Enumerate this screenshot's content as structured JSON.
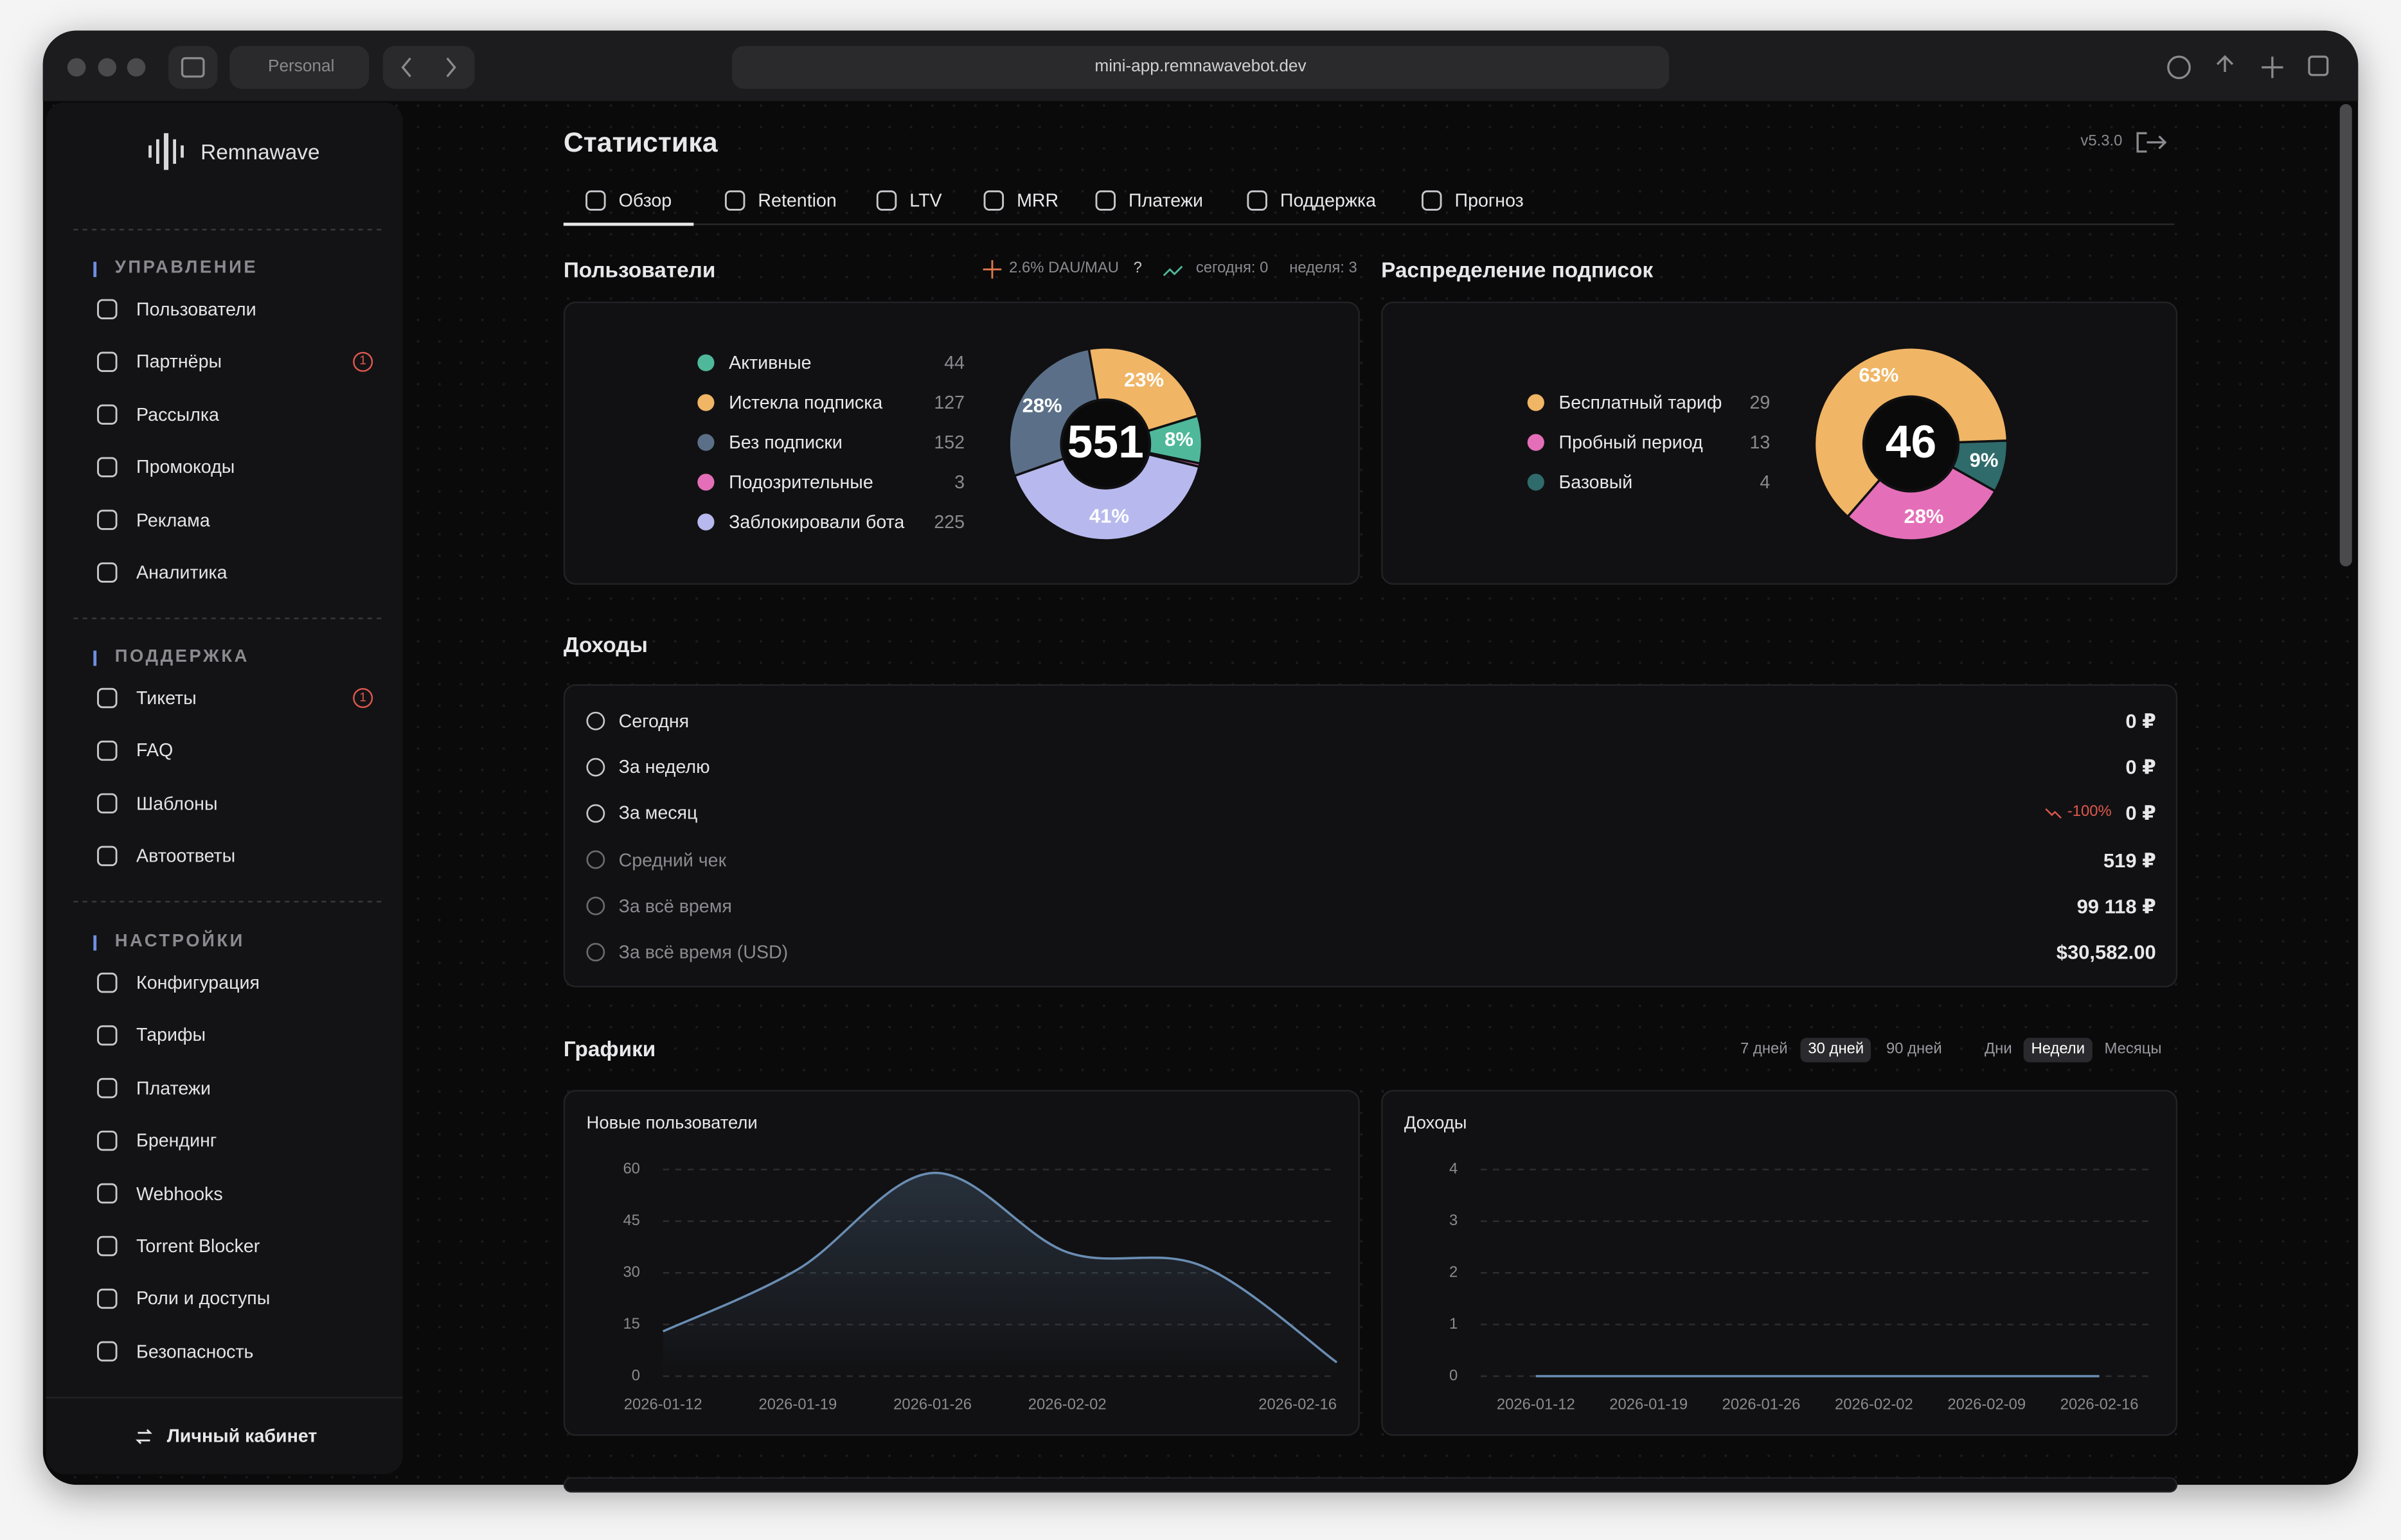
{
  "browser": {
    "profile": "Personal",
    "url": "mini-app.remnawavebot.dev"
  },
  "sidebar": {
    "brand": "Remnawave",
    "sections": [
      {
        "title": "УПРАВЛЕНИЕ",
        "items": [
          {
            "label": "Пользователи"
          },
          {
            "label": "Партнёры",
            "badge": "1"
          },
          {
            "label": "Рассылка"
          },
          {
            "label": "Промокоды"
          },
          {
            "label": "Реклама"
          },
          {
            "label": "Аналитика"
          }
        ]
      },
      {
        "title": "ПОДДЕРЖКА",
        "items": [
          {
            "label": "Тикеты",
            "badge": "1"
          },
          {
            "label": "FAQ"
          },
          {
            "label": "Шаблоны"
          },
          {
            "label": "Автоответы"
          }
        ]
      },
      {
        "title": "НАСТРОЙКИ",
        "items": [
          {
            "label": "Конфигурация"
          },
          {
            "label": "Тарифы"
          },
          {
            "label": "Платежи"
          },
          {
            "label": "Брендинг"
          },
          {
            "label": "Webhooks"
          },
          {
            "label": "Torrent Blocker"
          },
          {
            "label": "Роли и доступы"
          },
          {
            "label": "Безопасность"
          }
        ]
      }
    ],
    "footer": "Личный кабинет"
  },
  "header": {
    "title": "Статистика",
    "version": "v5.3.0",
    "tabs": [
      "Обзор",
      "Retention",
      "LTV",
      "MRR",
      "Платежи",
      "Поддержка",
      "Прогноз"
    ],
    "active_tab": 0
  },
  "users": {
    "title": "Пользователи",
    "dau_mau": "2.6% DAU/MAU",
    "help": "?",
    "today": "сегодня: 0",
    "week": "неделя: 3",
    "chart": {
      "type": "pie",
      "total": 551,
      "categories": [
        "Активные",
        "Истекла подписка",
        "Без подписки",
        "Подозрительные",
        "Заблокировали бота"
      ],
      "values": [
        44,
        127,
        152,
        3,
        225
      ],
      "colors": [
        "#4fb89a",
        "#f0b565",
        "#5b7088",
        "#e46fb8",
        "#b7b9ee"
      ],
      "shares": [
        8,
        23,
        28,
        null,
        41
      ],
      "share_labels": [
        "8%",
        "23%",
        "28%",
        null,
        "41%"
      ]
    }
  },
  "subscriptions": {
    "title": "Распределение подписок",
    "chart": {
      "type": "pie",
      "total": 46,
      "categories": [
        "Бесплатный тариф",
        "Пробный период",
        "Базовый"
      ],
      "values": [
        29,
        13,
        4
      ],
      "colors": [
        "#f0b565",
        "#e46fb8",
        "#2f6b6b"
      ],
      "shares": [
        63,
        28,
        9
      ],
      "share_labels": [
        "63%",
        "28%",
        "9%"
      ]
    }
  },
  "income": {
    "title": "Доходы",
    "rows": [
      {
        "label": "Сегодня",
        "value": "0 ₽"
      },
      {
        "label": "За неделю",
        "value": "0 ₽"
      },
      {
        "label": "За месяц",
        "value": "0 ₽",
        "change": "-100%"
      },
      {
        "label": "Средний чек",
        "value": "519 ₽"
      },
      {
        "label": "За всё время",
        "value": "99 118 ₽"
      },
      {
        "label": "За всё время (USD)",
        "value": "$30,582.00"
      }
    ]
  },
  "charts": {
    "title": "Графики",
    "ranges": [
      "7 дней",
      "30 дней",
      "90 дней"
    ],
    "active_range": 1,
    "periods": [
      "Дни",
      "Недели",
      "Месяцы"
    ],
    "active_period": 1
  },
  "chart_data": [
    {
      "type": "line",
      "title": "Новые пользователи",
      "categories": [
        "2026-01-12",
        "2026-01-19",
        "2026-01-26",
        "2026-02-02",
        null,
        "2026-02-16"
      ],
      "values": [
        13,
        31,
        59,
        36,
        32,
        4
      ],
      "color": "#6a8db3",
      "ylim": [
        0,
        60
      ],
      "yticks": [
        0,
        15,
        30,
        45,
        60
      ],
      "grid": true
    },
    {
      "type": "line",
      "title": "Доходы",
      "categories": [
        "2026-01-12",
        "2026-01-19",
        "2026-01-26",
        "2026-02-02",
        "2026-02-09",
        "2026-02-16"
      ],
      "values": [
        0,
        0,
        0,
        0,
        0,
        0
      ],
      "color": "#6a8db3",
      "ylim": [
        0,
        4
      ],
      "yticks": [
        0,
        1,
        2,
        3,
        4
      ],
      "grid": true
    }
  ]
}
